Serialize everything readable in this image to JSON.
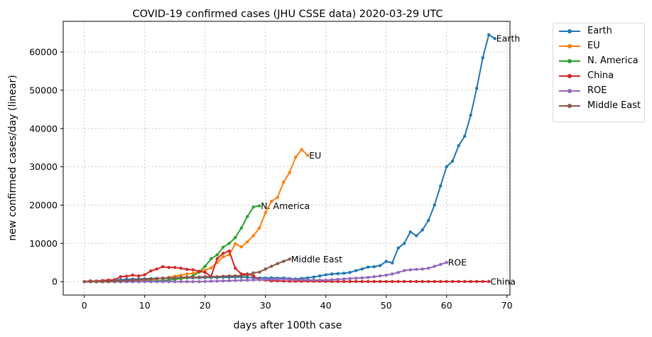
{
  "chart_data": {
    "type": "line",
    "title": "COVID-19 confirmed cases (JHU CSSE data) 2020-03-29 UTC",
    "xlabel": "days after 100th case",
    "ylabel": "new confirmed cases/day (linear)",
    "xlim": [
      -3.5,
      70.5
    ],
    "ylim": [
      -3500,
      68000
    ],
    "xticks": [
      0,
      10,
      20,
      30,
      40,
      50,
      60,
      70
    ],
    "yticks": [
      0,
      10000,
      20000,
      30000,
      40000,
      50000,
      60000
    ],
    "grid": true,
    "legend_position": "outside-right",
    "series": [
      {
        "name": "Earth",
        "color": "#1f77b4",
        "label": "Earth",
        "values": [
          0,
          100,
          150,
          200,
          300,
          400,
          500,
          600,
          650,
          700,
          750,
          800,
          850,
          880,
          900,
          920,
          950,
          980,
          1000,
          1020,
          1050,
          1100,
          1100,
          1150,
          1150,
          1200,
          1200,
          1150,
          1000,
          950,
          950,
          1000,
          900,
          950,
          800,
          700,
          850,
          1000,
          1200,
          1500,
          1800,
          2000,
          2100,
          2200,
          2400,
          2900,
          3300,
          3800,
          3900,
          4200,
          5300,
          4900,
          8800,
          10000,
          13000,
          12000,
          13500,
          16000,
          20000,
          25000,
          30000,
          31500,
          35500,
          38000,
          43500,
          50500,
          58500,
          64500,
          63500
        ]
      },
      {
        "name": "EU",
        "color": "#ff7f0e",
        "label": "EU",
        "values": [
          0,
          0,
          0,
          0,
          0,
          50,
          100,
          150,
          200,
          300,
          400,
          500,
          700,
          900,
          1100,
          1400,
          1700,
          2000,
          2200,
          2500,
          3000,
          3600,
          5000,
          6500,
          7000,
          9900,
          9100,
          10400,
          12000,
          14000,
          18000,
          21000,
          22000,
          26000,
          28500,
          32500,
          34500,
          33000
        ]
      },
      {
        "name": "N. America",
        "color": "#2ca02c",
        "label": "N. America",
        "values": [
          0,
          0,
          0,
          0,
          0,
          0,
          0,
          0,
          0,
          0,
          100,
          150,
          200,
          300,
          400,
          600,
          800,
          1000,
          1500,
          2500,
          4000,
          6000,
          7000,
          9000,
          10000,
          11500,
          14000,
          17000,
          19500,
          19800
        ]
      },
      {
        "name": "China",
        "color": "#d62728",
        "label": "China",
        "values": [
          0,
          200,
          100,
          300,
          400,
          500,
          1300,
          1400,
          1700,
          1500,
          1800,
          2800,
          3300,
          3900,
          3700,
          3700,
          3500,
          3200,
          3100,
          2700,
          2400,
          1400,
          6000,
          7400,
          8000,
          3500,
          2000,
          2000,
          1500,
          500,
          400,
          200,
          200,
          150,
          100,
          100,
          100,
          100,
          80,
          80,
          60,
          60,
          50,
          50,
          50,
          40,
          40,
          40,
          40,
          40,
          40,
          40,
          40,
          40,
          40,
          40,
          40,
          40,
          40,
          40,
          40,
          40,
          40,
          40,
          40,
          40,
          40,
          40
        ]
      },
      {
        "name": "ROE",
        "color": "#9467bd",
        "label": "ROE",
        "values": [
          0,
          0,
          0,
          0,
          0,
          0,
          0,
          0,
          0,
          0,
          0,
          0,
          0,
          0,
          0,
          0,
          0,
          0,
          0,
          0,
          50,
          100,
          150,
          200,
          250,
          300,
          350,
          400,
          450,
          500,
          550,
          600,
          650,
          650,
          600,
          500,
          500,
          450,
          400,
          400,
          400,
          500,
          600,
          700,
          800,
          900,
          1000,
          1100,
          1300,
          1500,
          1700,
          2000,
          2400,
          2900,
          3100,
          3200,
          3300,
          3500,
          4000,
          4500,
          5000
        ]
      },
      {
        "name": "Middle East",
        "color": "#8c564b",
        "label": "Middle East",
        "values": [
          0,
          0,
          0,
          0,
          0,
          100,
          200,
          300,
          400,
          500,
          600,
          700,
          800,
          900,
          1000,
          1000,
          1100,
          1200,
          1100,
          1200,
          1300,
          1300,
          1300,
          1400,
          1500,
          1500,
          1600,
          1700,
          2300,
          2500,
          3300,
          4000,
          4700,
          5300,
          5900
        ]
      }
    ]
  }
}
